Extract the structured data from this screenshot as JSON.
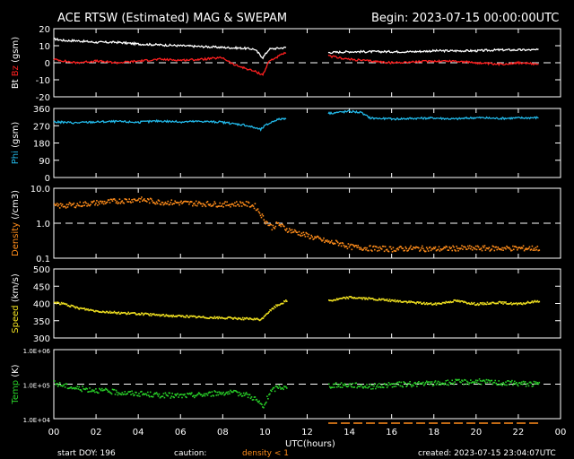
{
  "header": {
    "title": "ACE RTSW (Estimated) MAG & SWEPAM",
    "begin": "Begin: 2023-07-15 00:00:00UTC"
  },
  "footer": {
    "start_doy": "start DOY: 196",
    "caution": "caution:",
    "density_note": "density < 1",
    "created": "created: 2023-07-15 23:04:07UTC"
  },
  "colors": {
    "bt": "#ffffff",
    "bz": "#ff2020",
    "phi": "#22b8e8",
    "density": "#ff8c1a",
    "speed": "#f0e020",
    "temp": "#28d028",
    "frame": "#ffffff",
    "background": "#000000"
  },
  "chart_data": [
    {
      "type": "line",
      "panel": "mag",
      "ylabel_parts": [
        "Bt",
        "Bz",
        "(gsm)"
      ],
      "ylim": [
        -20,
        20
      ],
      "yticks": [
        "20",
        "10",
        "0",
        "-10",
        "-20"
      ],
      "ytick_values": [
        20,
        10,
        0,
        -10,
        -20
      ],
      "reference_line": 0,
      "gap": [
        11,
        13
      ],
      "series": [
        {
          "name": "Bt",
          "x": [
            0,
            0.5,
            1,
            2,
            3,
            4,
            5,
            6,
            7,
            8,
            9,
            9.5,
            9.9,
            10.2,
            11,
            13,
            14,
            15,
            16,
            17,
            18,
            19,
            20,
            21,
            22,
            23
          ],
          "values": [
            14,
            13,
            13,
            12,
            12,
            11,
            10.5,
            10,
            9.5,
            9,
            8.5,
            8,
            3,
            8,
            9,
            6,
            6.5,
            6.5,
            6.5,
            6.5,
            7,
            7,
            7,
            7.5,
            7.5,
            7.5
          ]
        },
        {
          "name": "Bz",
          "x": [
            0,
            0.5,
            1,
            2,
            3,
            4,
            5,
            6,
            7,
            8,
            8.5,
            9,
            9.5,
            9.9,
            10.2,
            11,
            13,
            14,
            15,
            16,
            17,
            18,
            19,
            20,
            21,
            22,
            23
          ],
          "values": [
            2,
            1,
            0,
            1,
            0,
            1,
            2,
            1.5,
            2,
            3,
            -1,
            -3,
            -5,
            -7,
            1,
            6,
            4,
            2,
            1,
            0,
            0.5,
            1,
            1,
            0,
            -1,
            0,
            -1
          ]
        }
      ]
    },
    {
      "type": "line",
      "panel": "phi",
      "ylabel_parts": [
        "Phi",
        "(gsm)"
      ],
      "ylim": [
        0,
        360
      ],
      "yticks": [
        "360",
        "270",
        "180",
        "90",
        "0"
      ],
      "ytick_values": [
        360,
        270,
        180,
        90,
        0
      ],
      "gap": [
        11,
        13
      ],
      "series": [
        {
          "name": "Phi",
          "x": [
            0,
            1,
            2,
            3,
            4,
            5,
            6,
            7,
            8,
            8.5,
            9,
            9.5,
            9.8,
            10,
            10.5,
            11,
            13,
            13.5,
            14,
            14.5,
            15,
            16,
            17,
            18,
            19,
            20,
            21,
            22,
            23
          ],
          "values": [
            290,
            285,
            290,
            292,
            288,
            295,
            290,
            293,
            288,
            280,
            275,
            260,
            250,
            270,
            300,
            310,
            335,
            340,
            345,
            340,
            310,
            305,
            308,
            310,
            305,
            312,
            308,
            310,
            312
          ]
        }
      ]
    },
    {
      "type": "scatter",
      "panel": "density",
      "ylabel_parts": [
        "Density",
        "(/cm3)"
      ],
      "yscale": "log",
      "ylim": [
        0.1,
        10
      ],
      "yticks": [
        "10.0",
        "1.0",
        "0.1"
      ],
      "ytick_values": [
        10,
        1,
        0.1
      ],
      "reference_line": 1,
      "series": [
        {
          "name": "Density",
          "x": [
            0,
            1,
            2,
            3,
            4,
            5,
            6,
            7,
            8,
            9,
            9.5,
            9.8,
            10,
            10.3,
            10.6,
            11,
            13,
            13.5,
            14,
            15,
            16,
            17,
            18,
            19,
            20,
            21,
            22,
            23
          ],
          "values": [
            3.2,
            3.5,
            4.0,
            4.5,
            5.0,
            4.2,
            4.0,
            3.8,
            3.6,
            3.8,
            3.2,
            1.8,
            1.2,
            0.8,
            1.0,
            0.7,
            0.3,
            0.28,
            0.22,
            0.2,
            0.19,
            0.2,
            0.19,
            0.2,
            0.2,
            0.2,
            0.2,
            0.2
          ]
        }
      ]
    },
    {
      "type": "scatter",
      "panel": "speed",
      "ylabel_parts": [
        "Speed",
        "(km/s)"
      ],
      "ylim": [
        300,
        500
      ],
      "yticks": [
        "500",
        "450",
        "400",
        "350",
        "300"
      ],
      "ytick_values": [
        500,
        450,
        400,
        350,
        300
      ],
      "gap": [
        11,
        13
      ],
      "series": [
        {
          "name": "Speed",
          "x": [
            0,
            0.5,
            1,
            2,
            3,
            4,
            5,
            6,
            7,
            8,
            9,
            9.8,
            10,
            10.5,
            11,
            13,
            14,
            15,
            16,
            17,
            18,
            19,
            20,
            21,
            22,
            23
          ],
          "values": [
            405,
            400,
            390,
            380,
            375,
            372,
            368,
            365,
            362,
            360,
            358,
            355,
            370,
            395,
            410,
            410,
            420,
            415,
            410,
            405,
            400,
            410,
            400,
            405,
            400,
            410
          ]
        }
      ]
    },
    {
      "type": "scatter",
      "panel": "temp",
      "ylabel_parts": [
        "Temp",
        "(K)"
      ],
      "yscale": "log",
      "ylim": [
        10000,
        1000000
      ],
      "yticks": [
        "1.0E+06",
        "1.0E+05",
        "1.0E+04"
      ],
      "ytick_values": [
        1000000,
        100000,
        10000
      ],
      "reference_line": 100000,
      "gap": [
        11,
        13
      ],
      "series": [
        {
          "name": "Temp",
          "x": [
            0,
            1,
            2,
            3,
            4,
            5,
            6,
            7,
            8,
            9,
            9.5,
            9.9,
            10.2,
            10.6,
            11,
            13,
            14,
            15,
            16,
            17,
            18,
            19,
            20,
            21,
            22,
            23
          ],
          "values": [
            110000,
            80000,
            70000,
            60000,
            55000,
            50000,
            48000,
            52000,
            60000,
            55000,
            40000,
            22000,
            60000,
            90000,
            80000,
            95000,
            100000,
            90000,
            100000,
            105000,
            110000,
            120000,
            125000,
            115000,
            110000,
            105000
          ]
        }
      ]
    }
  ],
  "x_axis": {
    "label": "UTC(hours)",
    "range": [
      0,
      24
    ],
    "ticks": [
      "00",
      "02",
      "04",
      "06",
      "08",
      "10",
      "12",
      "14",
      "16",
      "18",
      "20",
      "22",
      "00"
    ],
    "tick_values": [
      0,
      2,
      4,
      6,
      8,
      10,
      12,
      14,
      16,
      18,
      20,
      22,
      24
    ]
  }
}
